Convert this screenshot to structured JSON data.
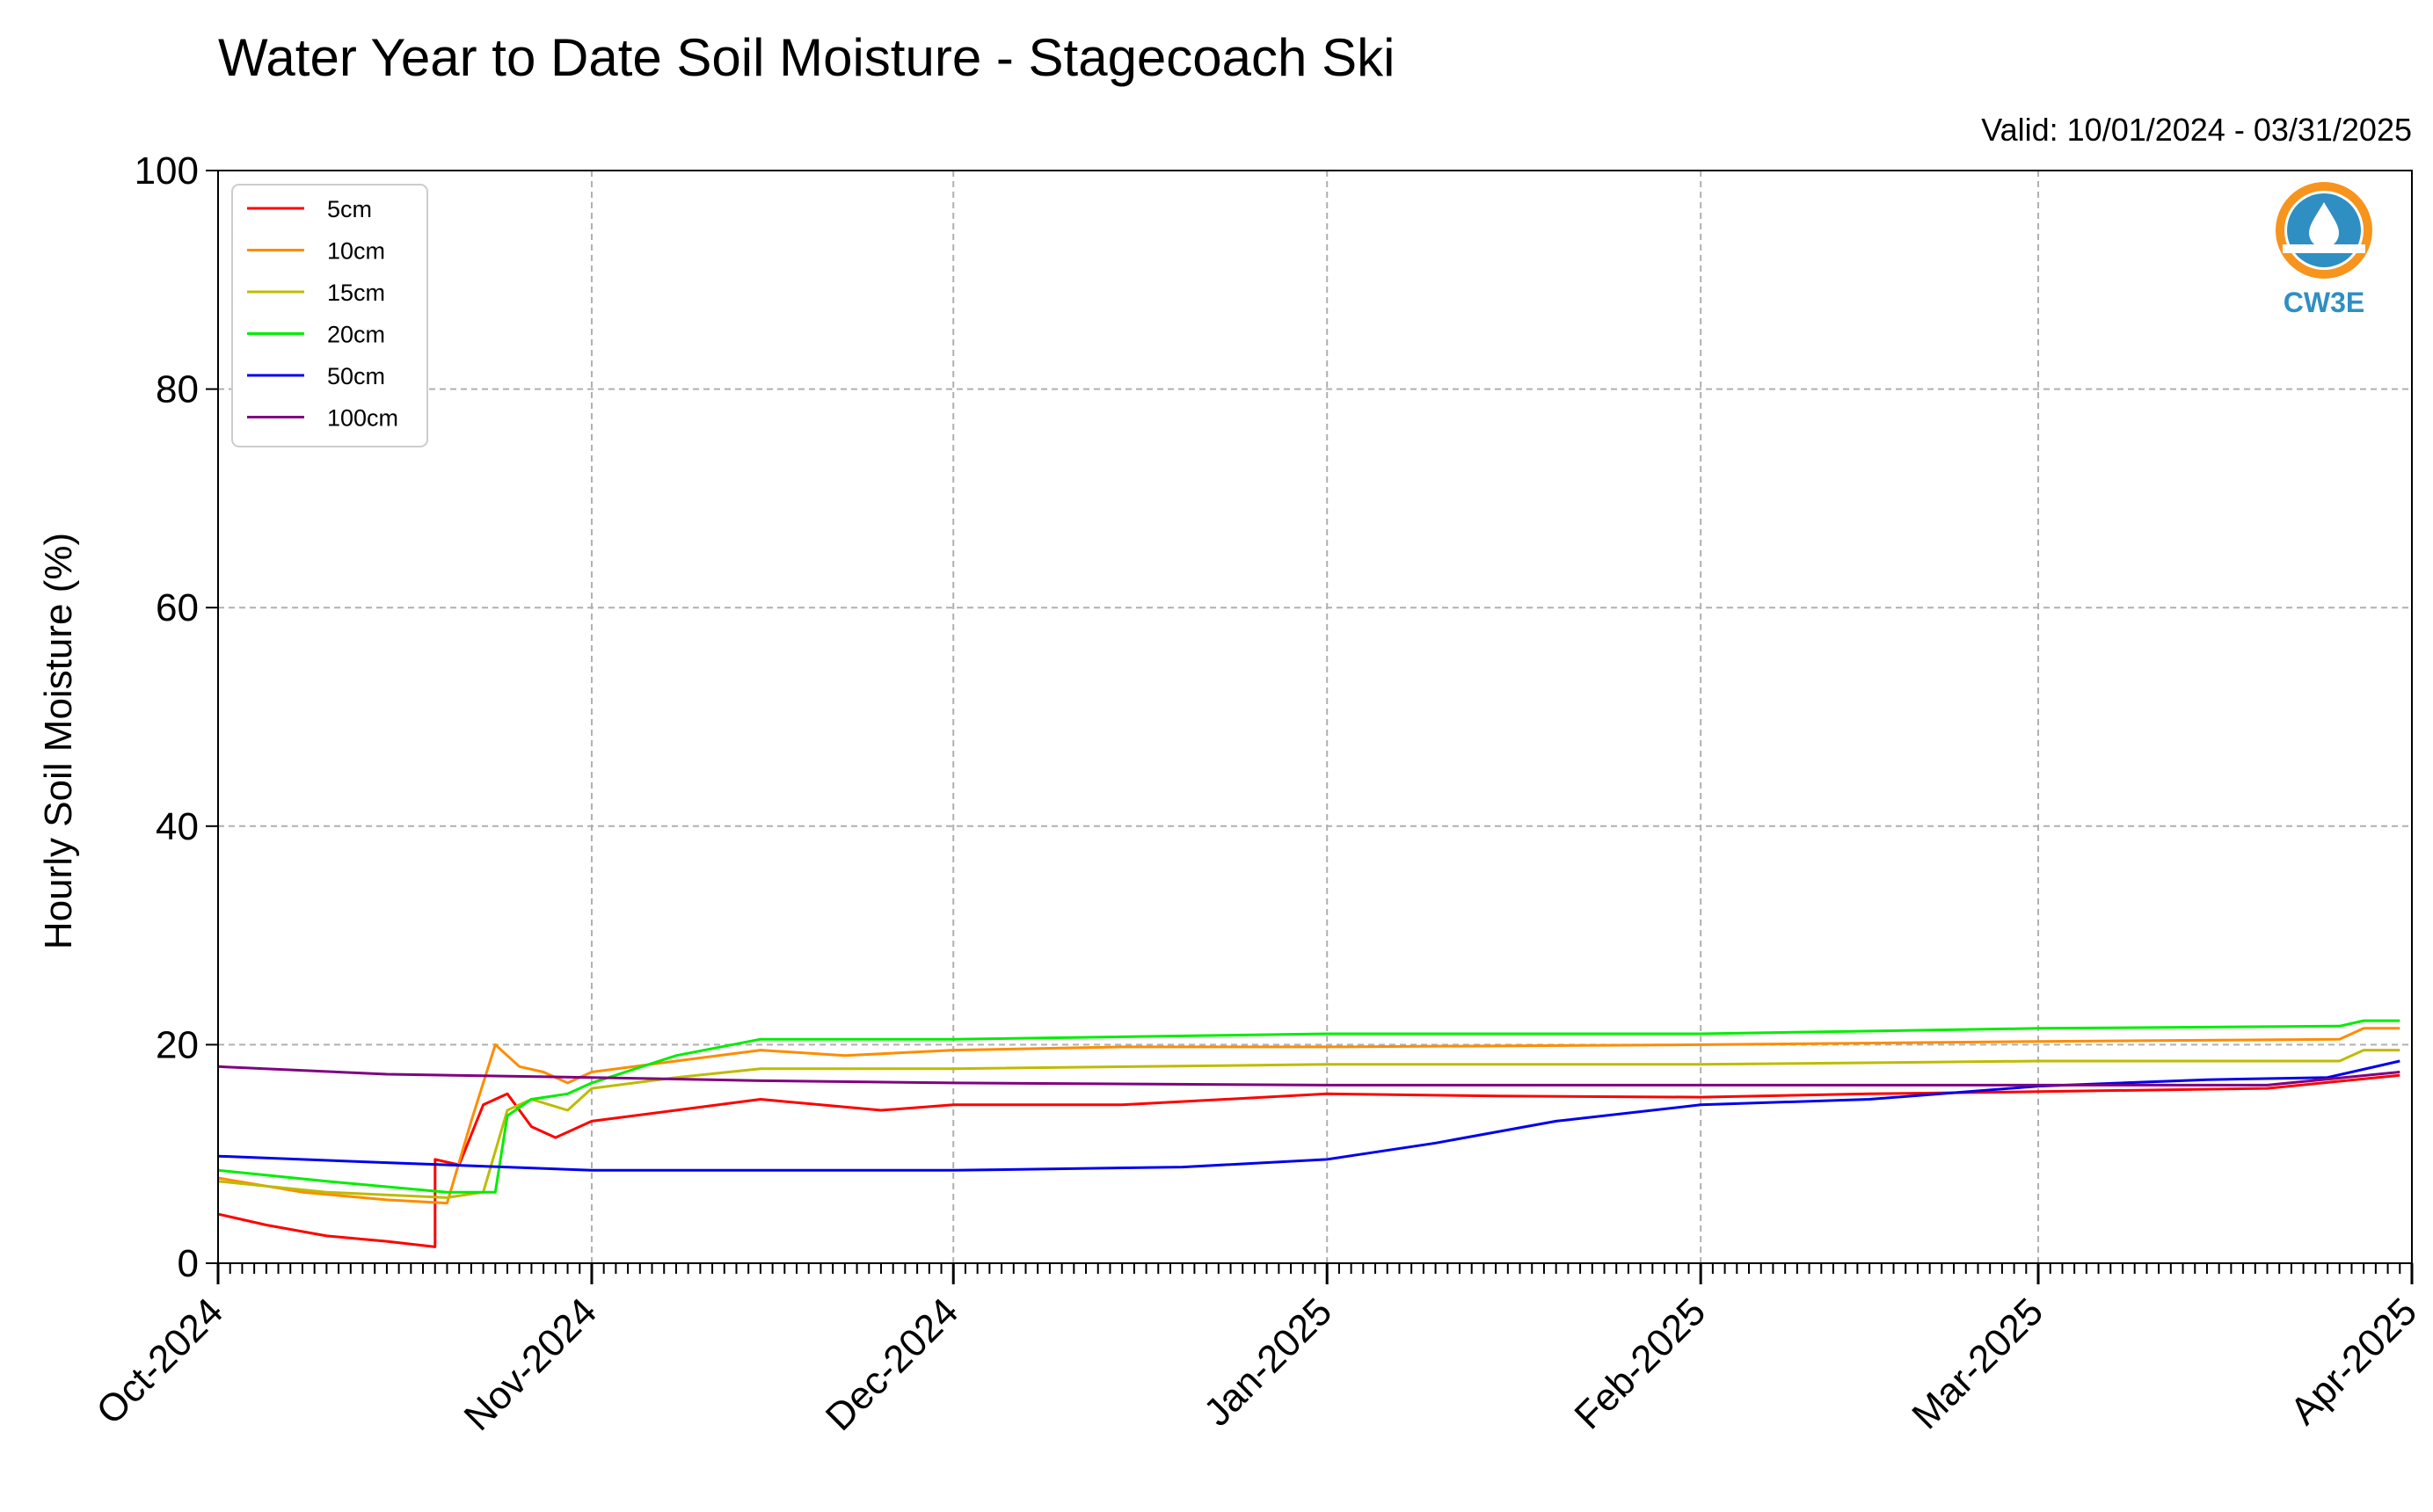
{
  "chart_data": {
    "type": "line",
    "title": "Water Year to Date Soil Moisture - Stagecoach Ski",
    "subtitle": "Valid: 10/01/2024 - 03/31/2025",
    "xlabel": "",
    "ylabel": "Hourly Soil Moisture (%)",
    "xlim": [
      "2024-10-01",
      "2025-04-01"
    ],
    "ylim": [
      0,
      100
    ],
    "x_ticks": [
      "Oct-2024",
      "Nov-2024",
      "Dec-2024",
      "Jan-2025",
      "Feb-2025",
      "Mar-2025",
      "Apr-2025"
    ],
    "y_ticks": [
      0,
      20,
      40,
      60,
      80,
      100
    ],
    "grid": true,
    "legend_position": "top-left",
    "series": [
      {
        "name": "5cm",
        "color": "#ff0000",
        "points": [
          [
            "2024-10-01",
            4.5
          ],
          [
            "2024-10-05",
            3.5
          ],
          [
            "2024-10-10",
            2.5
          ],
          [
            "2024-10-15",
            2.0
          ],
          [
            "2024-10-19",
            1.5
          ],
          [
            "2024-10-19",
            9.5
          ],
          [
            "2024-10-21",
            9.0
          ],
          [
            "2024-10-23",
            14.5
          ],
          [
            "2024-10-25",
            15.5
          ],
          [
            "2024-10-27",
            12.5
          ],
          [
            "2024-10-29",
            11.5
          ],
          [
            "2024-11-01",
            13.0
          ],
          [
            "2024-11-08",
            14.0
          ],
          [
            "2024-11-15",
            15.0
          ],
          [
            "2024-11-20",
            14.5
          ],
          [
            "2024-11-25",
            14.0
          ],
          [
            "2024-12-01",
            14.5
          ],
          [
            "2024-12-15",
            14.5
          ],
          [
            "2025-01-01",
            15.5
          ],
          [
            "2025-01-15",
            15.3
          ],
          [
            "2025-02-01",
            15.2
          ],
          [
            "2025-02-15",
            15.5
          ],
          [
            "2025-03-01",
            15.7
          ],
          [
            "2025-03-20",
            16.0
          ],
          [
            "2025-03-31",
            17.2
          ]
        ]
      },
      {
        "name": "10cm",
        "color": "#ff8c00",
        "points": [
          [
            "2024-10-01",
            7.8
          ],
          [
            "2024-10-08",
            6.5
          ],
          [
            "2024-10-15",
            5.8
          ],
          [
            "2024-10-20",
            5.5
          ],
          [
            "2024-10-22",
            13.0
          ],
          [
            "2024-10-24",
            20.0
          ],
          [
            "2024-10-26",
            18.0
          ],
          [
            "2024-10-28",
            17.5
          ],
          [
            "2024-10-30",
            16.5
          ],
          [
            "2024-11-01",
            17.5
          ],
          [
            "2024-11-08",
            18.5
          ],
          [
            "2024-11-15",
            19.5
          ],
          [
            "2024-11-22",
            19.0
          ],
          [
            "2024-12-01",
            19.5
          ],
          [
            "2024-12-15",
            19.8
          ],
          [
            "2025-01-01",
            19.8
          ],
          [
            "2025-02-01",
            20.0
          ],
          [
            "2025-03-01",
            20.3
          ],
          [
            "2025-03-26",
            20.5
          ],
          [
            "2025-03-28",
            21.5
          ],
          [
            "2025-03-31",
            21.5
          ]
        ]
      },
      {
        "name": "15cm",
        "color": "#bcbc00",
        "points": [
          [
            "2024-10-01",
            7.5
          ],
          [
            "2024-10-10",
            6.5
          ],
          [
            "2024-10-20",
            6.0
          ],
          [
            "2024-10-23",
            6.5
          ],
          [
            "2024-10-25",
            14.0
          ],
          [
            "2024-10-27",
            15.0
          ],
          [
            "2024-10-30",
            14.0
          ],
          [
            "2024-11-01",
            16.0
          ],
          [
            "2024-11-08",
            17.0
          ],
          [
            "2024-11-15",
            17.8
          ],
          [
            "2024-12-01",
            17.8
          ],
          [
            "2025-01-01",
            18.2
          ],
          [
            "2025-02-01",
            18.2
          ],
          [
            "2025-03-01",
            18.5
          ],
          [
            "2025-03-26",
            18.5
          ],
          [
            "2025-03-28",
            19.5
          ],
          [
            "2025-03-31",
            19.5
          ]
        ]
      },
      {
        "name": "20cm",
        "color": "#00ee00",
        "points": [
          [
            "2024-10-01",
            8.5
          ],
          [
            "2024-10-10",
            7.5
          ],
          [
            "2024-10-20",
            6.5
          ],
          [
            "2024-10-24",
            6.5
          ],
          [
            "2024-10-25",
            13.5
          ],
          [
            "2024-10-27",
            15.0
          ],
          [
            "2024-10-30",
            15.5
          ],
          [
            "2024-11-01",
            16.5
          ],
          [
            "2024-11-08",
            19.0
          ],
          [
            "2024-11-15",
            20.5
          ],
          [
            "2024-12-01",
            20.5
          ],
          [
            "2025-01-01",
            21.0
          ],
          [
            "2025-02-01",
            21.0
          ],
          [
            "2025-03-01",
            21.5
          ],
          [
            "2025-03-26",
            21.7
          ],
          [
            "2025-03-28",
            22.2
          ],
          [
            "2025-03-31",
            22.2
          ]
        ]
      },
      {
        "name": "50cm",
        "color": "#0000ee",
        "points": [
          [
            "2024-10-01",
            9.8
          ],
          [
            "2024-10-15",
            9.2
          ],
          [
            "2024-11-01",
            8.5
          ],
          [
            "2024-12-01",
            8.5
          ],
          [
            "2024-12-20",
            8.8
          ],
          [
            "2025-01-01",
            9.5
          ],
          [
            "2025-01-10",
            11.0
          ],
          [
            "2025-01-20",
            13.0
          ],
          [
            "2025-02-01",
            14.5
          ],
          [
            "2025-02-15",
            15.0
          ],
          [
            "2025-03-01",
            16.2
          ],
          [
            "2025-03-15",
            16.8
          ],
          [
            "2025-03-25",
            17.0
          ],
          [
            "2025-03-31",
            18.5
          ]
        ]
      },
      {
        "name": "100cm",
        "color": "#800080",
        "points": [
          [
            "2024-10-01",
            18.0
          ],
          [
            "2024-10-15",
            17.3
          ],
          [
            "2024-11-01",
            17.0
          ],
          [
            "2024-11-15",
            16.7
          ],
          [
            "2024-12-01",
            16.5
          ],
          [
            "2025-01-01",
            16.3
          ],
          [
            "2025-02-01",
            16.3
          ],
          [
            "2025-03-01",
            16.3
          ],
          [
            "2025-03-20",
            16.3
          ],
          [
            "2025-03-31",
            17.5
          ]
        ]
      }
    ]
  },
  "logo": {
    "text": "CW3E",
    "primary_color": "#f7941d",
    "secondary_color": "#2f8fc3"
  }
}
